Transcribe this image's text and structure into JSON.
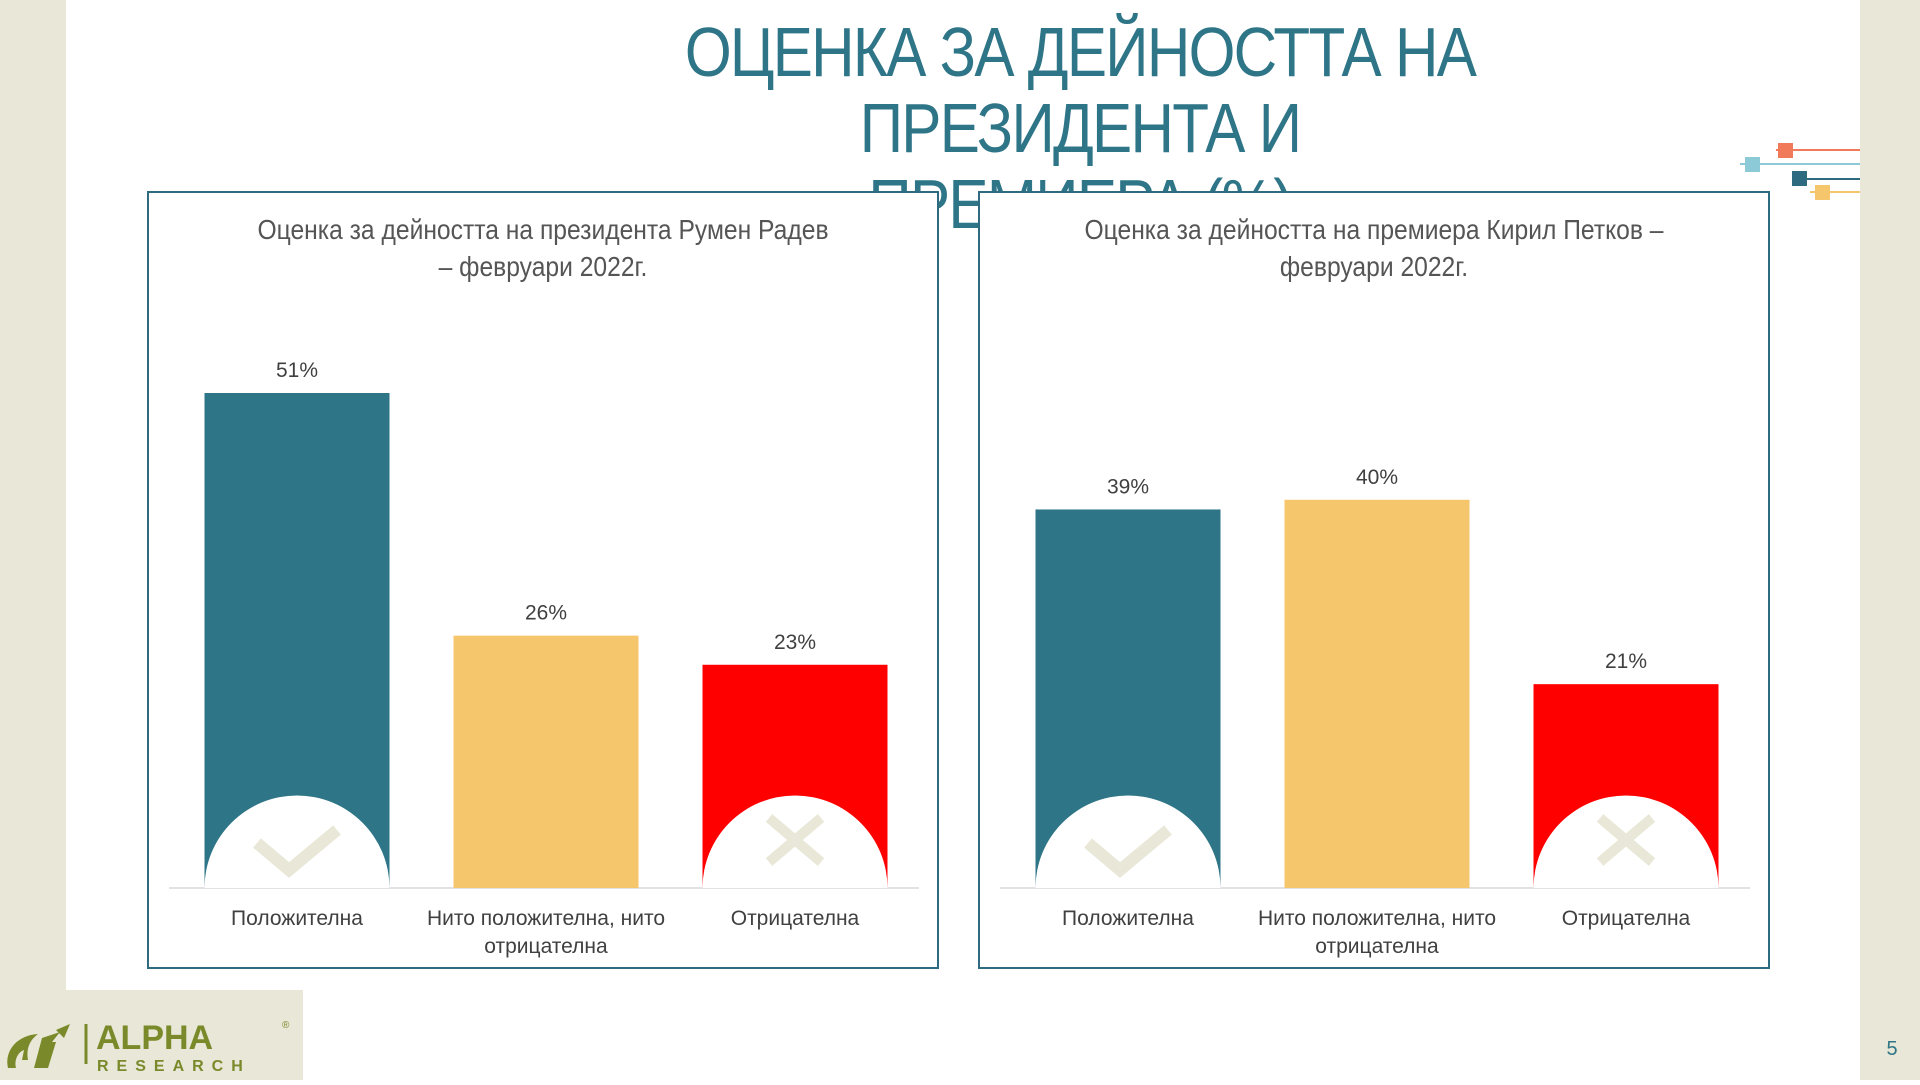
{
  "slide": {
    "title_line1": "ОЦЕНКА ЗА ДЕЙНОСТТА НА ПРЕЗИДЕНТА И",
    "title_line2": "ПРЕМИЕРА (%)",
    "page_number": "5"
  },
  "logo": {
    "name": "ALPHA",
    "registered_mark": "®",
    "subtitle": "RESEARCH"
  },
  "colors": {
    "positive": "#2e7587",
    "neutral": "#f6c66d",
    "negative": "#ff0000",
    "title": "#2e7587",
    "border": "#2e6a80",
    "icon_light": "#e9e7d7"
  },
  "chart_data": [
    {
      "type": "bar",
      "title_line1": "Оценка за дейността на президента Румен Радев",
      "title_line2": "– февруари 2022г.",
      "categories": [
        "Положителна",
        "Нито положителна, нито отрицателна",
        "Отрицателна"
      ],
      "category_lines": [
        [
          "Положителна"
        ],
        [
          "Нито положителна, нито",
          "отрицателна"
        ],
        [
          "Отрицателна"
        ]
      ],
      "values": [
        51,
        26,
        23
      ],
      "value_labels": [
        "51%",
        "26%",
        "23%"
      ],
      "icons": [
        "check-icon",
        "",
        "cross-icon"
      ],
      "ylim": [
        0,
        51
      ]
    },
    {
      "type": "bar",
      "title_line1": "Оценка за дейността на премиера Кирил Петков –",
      "title_line2": "февруари 2022г.",
      "categories": [
        "Положителна",
        "Нито положителна, нито отрицателна",
        "Отрицателна"
      ],
      "category_lines": [
        [
          "Положителна"
        ],
        [
          "Нито положителна, нито",
          "отрицателна"
        ],
        [
          "Отрицателна"
        ]
      ],
      "values": [
        39,
        40,
        21
      ],
      "value_labels": [
        "39%",
        "40%",
        "21%"
      ],
      "icons": [
        "check-icon",
        "",
        "cross-icon"
      ],
      "ylim": [
        0,
        51
      ]
    }
  ]
}
